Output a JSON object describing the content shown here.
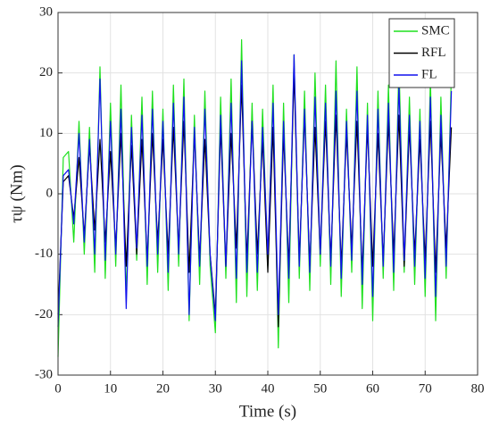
{
  "chart_data": {
    "type": "line",
    "xlabel": "Time (s)",
    "ylabel": "τψ (Nm)",
    "x": [
      0,
      1,
      2,
      3,
      4,
      5,
      6,
      7,
      8,
      9,
      10,
      11,
      12,
      13,
      14,
      15,
      16,
      17,
      18,
      19,
      20,
      21,
      22,
      23,
      24,
      25,
      26,
      27,
      28,
      29,
      30,
      31,
      32,
      33,
      34,
      35,
      36,
      37,
      38,
      39,
      40,
      41,
      42,
      43,
      44,
      45,
      46,
      47,
      48,
      49,
      50,
      51,
      52,
      53,
      54,
      55,
      56,
      57,
      58,
      59,
      60,
      61,
      62,
      63,
      64,
      65,
      66,
      67,
      68,
      69,
      70,
      71,
      72,
      73,
      74,
      75
    ],
    "series": [
      {
        "name": "SMC",
        "color": "#1ee01e",
        "values": [
          -27,
          6,
          7,
          -8,
          12,
          -10,
          11,
          -13,
          21,
          -14,
          15,
          -12,
          18,
          -17,
          13,
          -11,
          16,
          -15,
          17,
          -13,
          14,
          -16,
          18,
          -12,
          19,
          -21,
          13,
          -15,
          17,
          -12,
          -23,
          16,
          -14,
          19,
          -18,
          25.5,
          -17,
          15,
          -16,
          14,
          -12,
          18,
          -25.5,
          15,
          -18,
          23,
          -14,
          17,
          -16,
          20,
          -12,
          18,
          -15,
          22,
          -17,
          14,
          -13,
          21,
          -19,
          15,
          -21,
          17,
          -14,
          18,
          -16,
          22,
          -13,
          16,
          -15,
          14,
          -17,
          19,
          -21,
          16,
          -14,
          20
        ]
      },
      {
        "name": "RFL",
        "color": "#000000",
        "values": [
          -20,
          2,
          3,
          -4,
          6,
          -7,
          8,
          -6,
          9,
          -8,
          7,
          -9,
          10,
          -12,
          8,
          -10,
          9,
          -11,
          10,
          -8,
          9,
          -10,
          11,
          -9,
          12,
          -13,
          10,
          -11,
          9,
          -10,
          -20,
          11,
          -12,
          10,
          -9,
          18,
          -11,
          12,
          -10,
          9,
          -13,
          11,
          -22,
          10,
          -12,
          20,
          -11,
          13,
          -12,
          11,
          -10,
          12,
          -11,
          13,
          -12,
          10,
          -9,
          12,
          -13,
          11,
          -12,
          10,
          -11,
          12,
          -10,
          13,
          -12,
          11,
          -10,
          9,
          -11,
          12,
          -13,
          10,
          -9,
          11
        ]
      },
      {
        "name": "FL",
        "color": "#1010ee",
        "values": [
          -22,
          3,
          4,
          -5,
          10,
          -8,
          9,
          -10,
          19,
          -11,
          12,
          -10,
          14,
          -19,
          11,
          -9,
          13,
          -12,
          14,
          -10,
          12,
          -13,
          15,
          -10,
          16,
          -20,
          11,
          -12,
          14,
          -10,
          -21,
          13,
          -12,
          15,
          -14,
          22,
          -13,
          12,
          -13,
          11,
          -10,
          15,
          -20,
          12,
          -14,
          23,
          -12,
          14,
          -13,
          16,
          -10,
          15,
          -12,
          17,
          -14,
          12,
          -11,
          17,
          -15,
          13,
          -17,
          14,
          -12,
          15,
          -13,
          18,
          -11,
          13,
          -12,
          12,
          -14,
          16,
          -17,
          13,
          -12,
          17
        ]
      }
    ],
    "xlim": [
      0,
      80
    ],
    "xticks": [
      0,
      10,
      20,
      30,
      40,
      50,
      60,
      70,
      80
    ],
    "ylim": [
      -30,
      30
    ],
    "yticks": [
      -30,
      -20,
      -10,
      0,
      10,
      20,
      30
    ],
    "grid": true,
    "legend": "upper right"
  }
}
